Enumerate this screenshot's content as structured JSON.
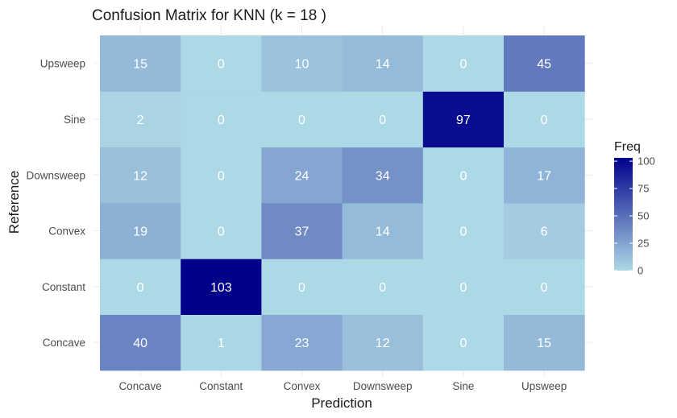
{
  "chart_data": {
    "type": "heatmap",
    "title": "Confusion Matrix for KNN (k = 18 )",
    "xlabel": "Prediction",
    "ylabel": "Reference",
    "x_categories": [
      "Concave",
      "Constant",
      "Convex",
      "Downsweep",
      "Sine",
      "Upsweep"
    ],
    "y_categories": [
      "Concave",
      "Constant",
      "Convex",
      "Downsweep",
      "Sine",
      "Upsweep"
    ],
    "values": [
      [
        40,
        1,
        23,
        12,
        0,
        15
      ],
      [
        0,
        103,
        0,
        0,
        0,
        0
      ],
      [
        19,
        0,
        37,
        14,
        0,
        6
      ],
      [
        12,
        0,
        24,
        34,
        0,
        17
      ],
      [
        2,
        0,
        0,
        0,
        97,
        0
      ],
      [
        15,
        0,
        10,
        14,
        0,
        45
      ]
    ],
    "legend": {
      "title": "Freq",
      "ticks": [
        0,
        25,
        50,
        75,
        100
      ],
      "low_color": "#add8e6",
      "high_color": "#00008b",
      "range": [
        0,
        103
      ]
    },
    "grid": true
  }
}
